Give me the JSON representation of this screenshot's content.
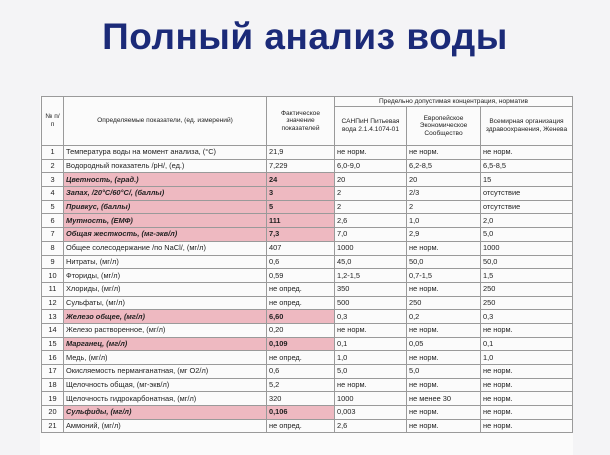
{
  "title": "Полный анализ воды",
  "colors": {
    "title": "#1b2a78",
    "highlight": "#eeb9c1"
  },
  "table": {
    "headers": {
      "num": "№ п/п",
      "param": "Определяемые показатели, (ед. измерений)",
      "value": "Фактическое значение показателей",
      "norms": "Предельно допустимая концентрация, норматив",
      "sanpin": "САНПиН Питьевая вода 2.1.4.1074-01",
      "eu": "Европейское Экономическое Сообщество",
      "who": "Всемирная организация здравоохранения, Женева"
    },
    "rows": [
      {
        "n": "1",
        "param": "Температура воды на момент анализа, (°C)",
        "value": "21,9",
        "sanpin": "не норм.",
        "eu": "не норм.",
        "who": "не норм.",
        "hl": false
      },
      {
        "n": "2",
        "param": "Водородный показатель /pH/, (ед.)",
        "value": "7,229",
        "sanpin": "6,0-9,0",
        "eu": "6,2-8,5",
        "who": "6,5-8,5",
        "hl": false
      },
      {
        "n": "3",
        "param": "Цветность, (град.)",
        "value": "24",
        "sanpin": "20",
        "eu": "20",
        "who": "15",
        "hl": true
      },
      {
        "n": "4",
        "param": "Запах, /20°C/60°C/, (баллы)",
        "value": "3",
        "sanpin": "2",
        "eu": "2/3",
        "who": "отсутствие",
        "hl": true
      },
      {
        "n": "5",
        "param": "Привкус, (баллы)",
        "value": "5",
        "sanpin": "2",
        "eu": "2",
        "who": "отсутствие",
        "hl": true
      },
      {
        "n": "6",
        "param": "Мутность, (ЕМФ)",
        "value": "111",
        "sanpin": "2,6",
        "eu": "1,0",
        "who": "2,0",
        "hl": true
      },
      {
        "n": "7",
        "param": "Общая жесткость, (мг-экв/л)",
        "value": "7,3",
        "sanpin": "7,0",
        "eu": "2,9",
        "who": "5,0",
        "hl": true
      },
      {
        "n": "8",
        "param": "Общее солесодержание /по NaCl/, (мг/л)",
        "value": "407",
        "sanpin": "1000",
        "eu": "не норм.",
        "who": "1000",
        "hl": false
      },
      {
        "n": "9",
        "param": "Нитраты, (мг/л)",
        "value": "0,6",
        "sanpin": "45,0",
        "eu": "50,0",
        "who": "50,0",
        "hl": false
      },
      {
        "n": "10",
        "param": "Фториды, (мг/л)",
        "value": "0,59",
        "sanpin": "1,2-1,5",
        "eu": "0,7-1,5",
        "who": "1,5",
        "hl": false
      },
      {
        "n": "11",
        "param": "Хлориды, (мг/л)",
        "value": "не опред.",
        "sanpin": "350",
        "eu": "не норм.",
        "who": "250",
        "hl": false
      },
      {
        "n": "12",
        "param": "Сульфаты, (мг/л)",
        "value": "не опред.",
        "sanpin": "500",
        "eu": "250",
        "who": "250",
        "hl": false
      },
      {
        "n": "13",
        "param": "Железо общее, (мг/л)",
        "value": "6,60",
        "sanpin": "0,3",
        "eu": "0,2",
        "who": "0,3",
        "hl": true
      },
      {
        "n": "14",
        "param": "Железо растворенное, (мг/л)",
        "value": "0,20",
        "sanpin": "не норм.",
        "eu": "не норм.",
        "who": "не норм.",
        "hl": false
      },
      {
        "n": "15",
        "param": "Марганец, (мг/л)",
        "value": "0,109",
        "sanpin": "0,1",
        "eu": "0,05",
        "who": "0,1",
        "hl": true
      },
      {
        "n": "16",
        "param": "Медь, (мг/л)",
        "value": "не опред.",
        "sanpin": "1,0",
        "eu": "не норм.",
        "who": "1,0",
        "hl": false
      },
      {
        "n": "17",
        "param": "Окисляемость перманганатная, (мг О2/л)",
        "value": "0,6",
        "sanpin": "5,0",
        "eu": "5,0",
        "who": "не норм.",
        "hl": false
      },
      {
        "n": "18",
        "param": "Щелочность общая, (мг-экв/л)",
        "value": "5,2",
        "sanpin": "не норм.",
        "eu": "не норм.",
        "who": "не норм.",
        "hl": false
      },
      {
        "n": "19",
        "param": "Щелочность гидрокарбонатная, (мг/л)",
        "value": "320",
        "sanpin": "1000",
        "eu": "не менее 30",
        "who": "не норм.",
        "hl": false
      },
      {
        "n": "20",
        "param": "Сульфиды, (мг/л)",
        "value": "0,106",
        "sanpin": "0,003",
        "eu": "не норм.",
        "who": "не норм.",
        "hl": true
      },
      {
        "n": "21",
        "param": "Аммоний, (мг/л)",
        "value": "не опред.",
        "sanpin": "2,6",
        "eu": "не норм.",
        "who": "не норм.",
        "hl": false
      }
    ]
  }
}
